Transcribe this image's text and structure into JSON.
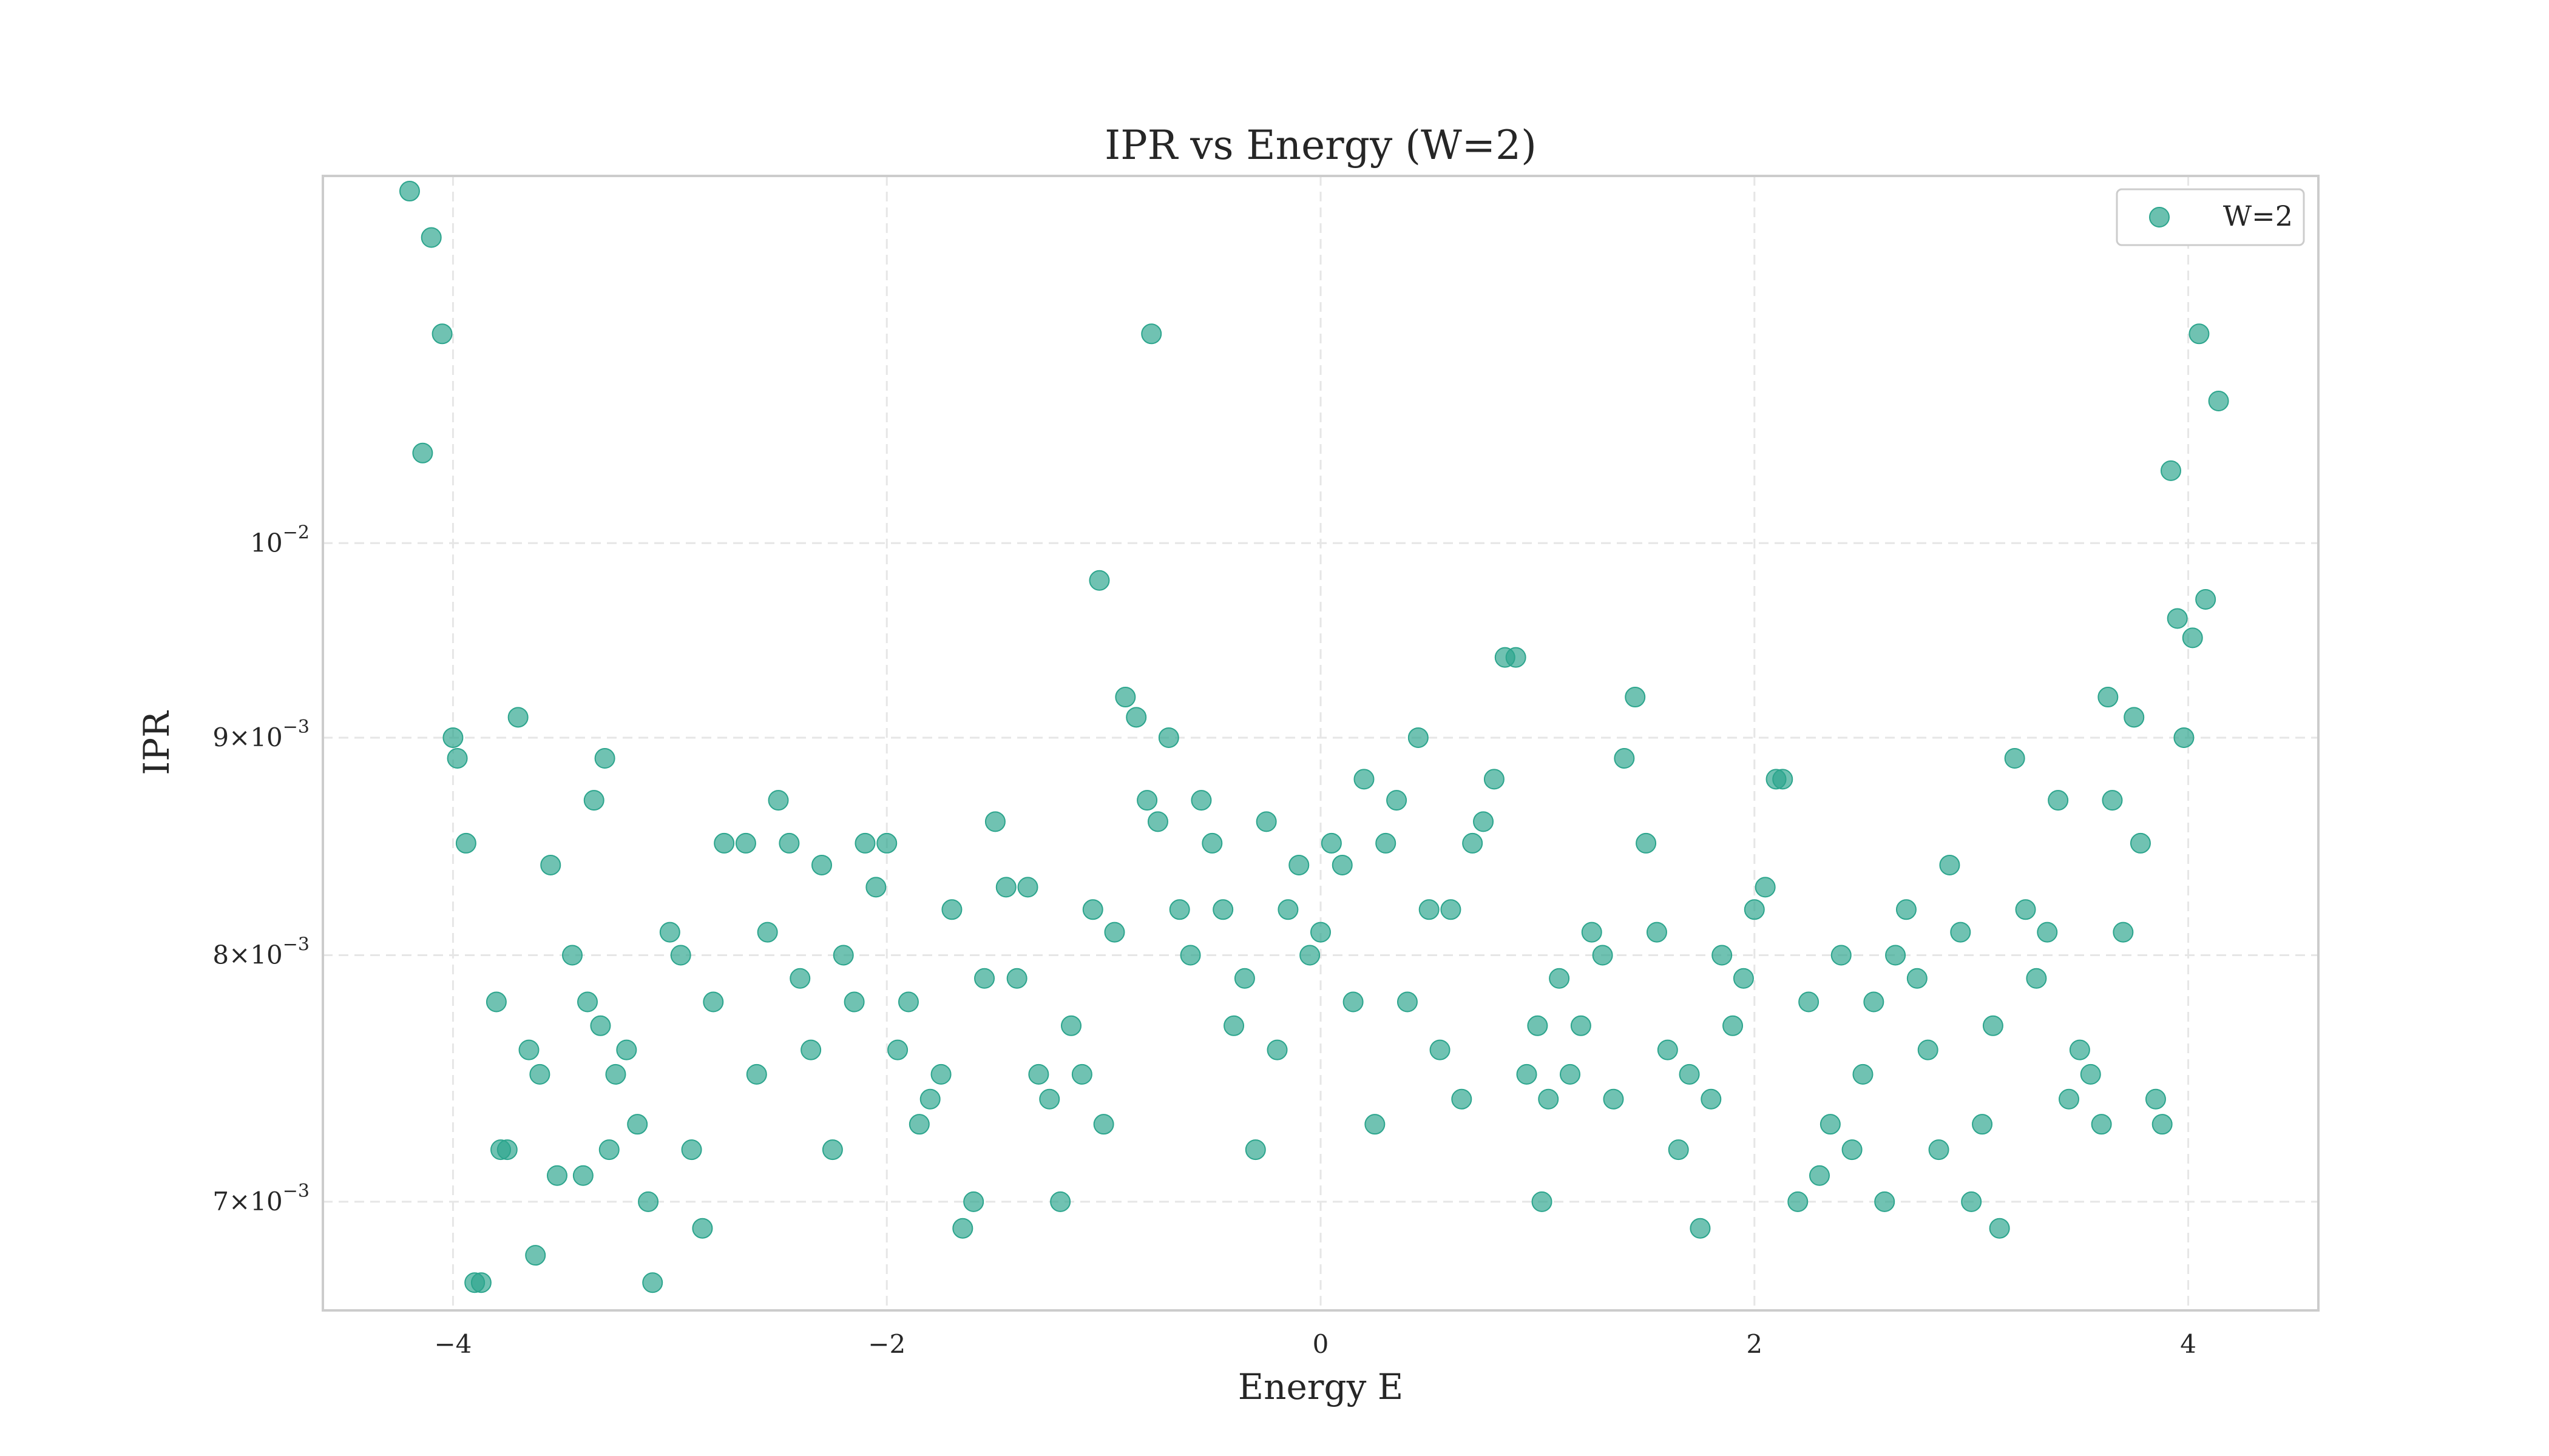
{
  "chart_data": {
    "type": "scatter",
    "title": "IPR vs Energy (W=2)",
    "xlabel": "Energy E",
    "ylabel": "IPR",
    "xlim": [
      -4.6,
      4.6
    ],
    "ylim": [
      0.0066,
      0.0122
    ],
    "y_scale": "log",
    "grid": true,
    "legend_position": "top-right",
    "x_ticks": [
      -4,
      -2,
      0,
      2,
      4
    ],
    "x_tick_labels": [
      "−4",
      "−2",
      "0",
      "2",
      "4"
    ],
    "y_ticks": [
      {
        "value": 0.007,
        "mantissa": "7",
        "exponent": "−3"
      },
      {
        "value": 0.008,
        "mantissa": "8",
        "exponent": "−3"
      },
      {
        "value": 0.009,
        "mantissa": "9",
        "exponent": "−3"
      },
      {
        "value": 0.01,
        "mantissa": "",
        "exponent": "−2"
      }
    ],
    "series": [
      {
        "name": "W=2",
        "color": "#2ca58d",
        "points": [
          [
            -4.2,
            0.0121
          ],
          [
            -4.1,
            0.0118
          ],
          [
            -4.05,
            0.0112
          ],
          [
            -4.14,
            0.0105
          ],
          [
            -4.0,
            0.009
          ],
          [
            -3.98,
            0.0089
          ],
          [
            -3.94,
            0.0085
          ],
          [
            -3.7,
            0.0091
          ],
          [
            -3.3,
            0.0089
          ],
          [
            -3.35,
            0.0087
          ],
          [
            -3.55,
            0.0084
          ],
          [
            -3.9,
            0.0067
          ],
          [
            -3.87,
            0.0067
          ],
          [
            -3.62,
            0.0068
          ],
          [
            -3.08,
            0.0067
          ],
          [
            -2.85,
            0.0069
          ],
          [
            -3.75,
            0.0072
          ],
          [
            -3.78,
            0.0072
          ],
          [
            -3.52,
            0.0071
          ],
          [
            -3.4,
            0.0071
          ],
          [
            -3.28,
            0.0072
          ],
          [
            -3.1,
            0.007
          ],
          [
            -3.8,
            0.0078
          ],
          [
            -3.65,
            0.0076
          ],
          [
            -3.6,
            0.0075
          ],
          [
            -3.45,
            0.008
          ],
          [
            -3.38,
            0.0078
          ],
          [
            -3.32,
            0.0077
          ],
          [
            -3.25,
            0.0075
          ],
          [
            -3.2,
            0.0076
          ],
          [
            -3.15,
            0.0073
          ],
          [
            -3.0,
            0.0081
          ],
          [
            -2.95,
            0.008
          ],
          [
            -2.9,
            0.0072
          ],
          [
            -2.8,
            0.0078
          ],
          [
            -2.75,
            0.0085
          ],
          [
            -2.65,
            0.0085
          ],
          [
            -2.6,
            0.0075
          ],
          [
            -2.55,
            0.0081
          ],
          [
            -2.5,
            0.0087
          ],
          [
            -2.45,
            0.0085
          ],
          [
            -2.4,
            0.0079
          ],
          [
            -2.35,
            0.0076
          ],
          [
            -2.3,
            0.0084
          ],
          [
            -2.25,
            0.0072
          ],
          [
            -2.2,
            0.008
          ],
          [
            -2.15,
            0.0078
          ],
          [
            -2.1,
            0.0085
          ],
          [
            -2.05,
            0.0083
          ],
          [
            -2.0,
            0.0085
          ],
          [
            -1.95,
            0.0076
          ],
          [
            -1.9,
            0.0078
          ],
          [
            -1.85,
            0.0073
          ],
          [
            -1.8,
            0.0074
          ],
          [
            -1.75,
            0.0075
          ],
          [
            -1.7,
            0.0082
          ],
          [
            -1.65,
            0.0069
          ],
          [
            -1.6,
            0.007
          ],
          [
            -1.55,
            0.0079
          ],
          [
            -1.5,
            0.0086
          ],
          [
            -1.45,
            0.0083
          ],
          [
            -1.4,
            0.0079
          ],
          [
            -1.35,
            0.0083
          ],
          [
            -1.3,
            0.0075
          ],
          [
            -1.25,
            0.0074
          ],
          [
            -1.2,
            0.007
          ],
          [
            -1.15,
            0.0077
          ],
          [
            -1.1,
            0.0075
          ],
          [
            -1.05,
            0.0082
          ],
          [
            -1.0,
            0.0073
          ],
          [
            -0.95,
            0.0081
          ],
          [
            -0.9,
            0.0092
          ],
          [
            -0.85,
            0.0091
          ],
          [
            -0.8,
            0.0087
          ],
          [
            -0.75,
            0.0086
          ],
          [
            -0.7,
            0.009
          ],
          [
            -0.65,
            0.0082
          ],
          [
            -0.6,
            0.008
          ],
          [
            -0.55,
            0.0087
          ],
          [
            -0.5,
            0.0085
          ],
          [
            -0.45,
            0.0082
          ],
          [
            -0.4,
            0.0077
          ],
          [
            -0.35,
            0.0079
          ],
          [
            -0.3,
            0.0072
          ],
          [
            -0.25,
            0.0086
          ],
          [
            -0.2,
            0.0076
          ],
          [
            -0.15,
            0.0082
          ],
          [
            -0.1,
            0.0084
          ],
          [
            -0.05,
            0.008
          ],
          [
            0.0,
            0.0081
          ],
          [
            0.05,
            0.0085
          ],
          [
            0.1,
            0.0084
          ],
          [
            0.15,
            0.0078
          ],
          [
            0.2,
            0.0088
          ],
          [
            0.25,
            0.0073
          ],
          [
            0.3,
            0.0085
          ],
          [
            0.35,
            0.0087
          ],
          [
            0.4,
            0.0078
          ],
          [
            0.45,
            0.009
          ],
          [
            0.5,
            0.0082
          ],
          [
            0.55,
            0.0076
          ],
          [
            0.6,
            0.0082
          ],
          [
            0.65,
            0.0074
          ],
          [
            0.7,
            0.0085
          ],
          [
            0.75,
            0.0086
          ],
          [
            0.8,
            0.0088
          ],
          [
            0.85,
            0.0094
          ],
          [
            0.9,
            0.0094
          ],
          [
            -1.02,
            0.0098
          ],
          [
            -0.78,
            0.0112
          ],
          [
            0.95,
            0.0075
          ],
          [
            1.0,
            0.0077
          ],
          [
            1.02,
            0.007
          ],
          [
            1.05,
            0.0074
          ],
          [
            1.1,
            0.0079
          ],
          [
            1.15,
            0.0075
          ],
          [
            1.2,
            0.0077
          ],
          [
            1.25,
            0.0081
          ],
          [
            1.3,
            0.008
          ],
          [
            1.35,
            0.0074
          ],
          [
            1.4,
            0.0089
          ],
          [
            1.45,
            0.0092
          ],
          [
            1.5,
            0.0085
          ],
          [
            1.55,
            0.0081
          ],
          [
            1.6,
            0.0076
          ],
          [
            1.65,
            0.0072
          ],
          [
            1.7,
            0.0075
          ],
          [
            1.75,
            0.0069
          ],
          [
            1.8,
            0.0074
          ],
          [
            1.85,
            0.008
          ],
          [
            1.9,
            0.0077
          ],
          [
            1.95,
            0.0079
          ],
          [
            2.0,
            0.0082
          ],
          [
            2.05,
            0.0083
          ],
          [
            2.1,
            0.0088
          ],
          [
            2.13,
            0.0088
          ],
          [
            2.2,
            0.007
          ],
          [
            2.25,
            0.0078
          ],
          [
            2.3,
            0.0071
          ],
          [
            2.35,
            0.0073
          ],
          [
            2.4,
            0.008
          ],
          [
            2.45,
            0.0072
          ],
          [
            2.5,
            0.0075
          ],
          [
            2.55,
            0.0078
          ],
          [
            2.6,
            0.007
          ],
          [
            2.65,
            0.008
          ],
          [
            2.7,
            0.0082
          ],
          [
            2.75,
            0.0079
          ],
          [
            2.8,
            0.0076
          ],
          [
            2.85,
            0.0072
          ],
          [
            2.9,
            0.0084
          ],
          [
            2.95,
            0.0081
          ],
          [
            3.0,
            0.007
          ],
          [
            3.05,
            0.0073
          ],
          [
            3.1,
            0.0077
          ],
          [
            3.13,
            0.0069
          ],
          [
            3.2,
            0.0089
          ],
          [
            3.25,
            0.0082
          ],
          [
            3.3,
            0.0079
          ],
          [
            3.35,
            0.0081
          ],
          [
            3.4,
            0.0087
          ],
          [
            3.45,
            0.0074
          ],
          [
            3.5,
            0.0076
          ],
          [
            3.55,
            0.0075
          ],
          [
            3.6,
            0.0073
          ],
          [
            3.65,
            0.0087
          ],
          [
            3.7,
            0.0081
          ],
          [
            3.75,
            0.0091
          ],
          [
            3.78,
            0.0085
          ],
          [
            3.85,
            0.0074
          ],
          [
            3.88,
            0.0073
          ],
          [
            3.92,
            0.0104
          ],
          [
            3.95,
            0.0096
          ],
          [
            3.98,
            0.009
          ],
          [
            4.02,
            0.0095
          ],
          [
            4.05,
            0.0112
          ],
          [
            4.08,
            0.0097
          ],
          [
            4.14,
            0.0108
          ],
          [
            3.63,
            0.0092
          ]
        ]
      }
    ]
  }
}
